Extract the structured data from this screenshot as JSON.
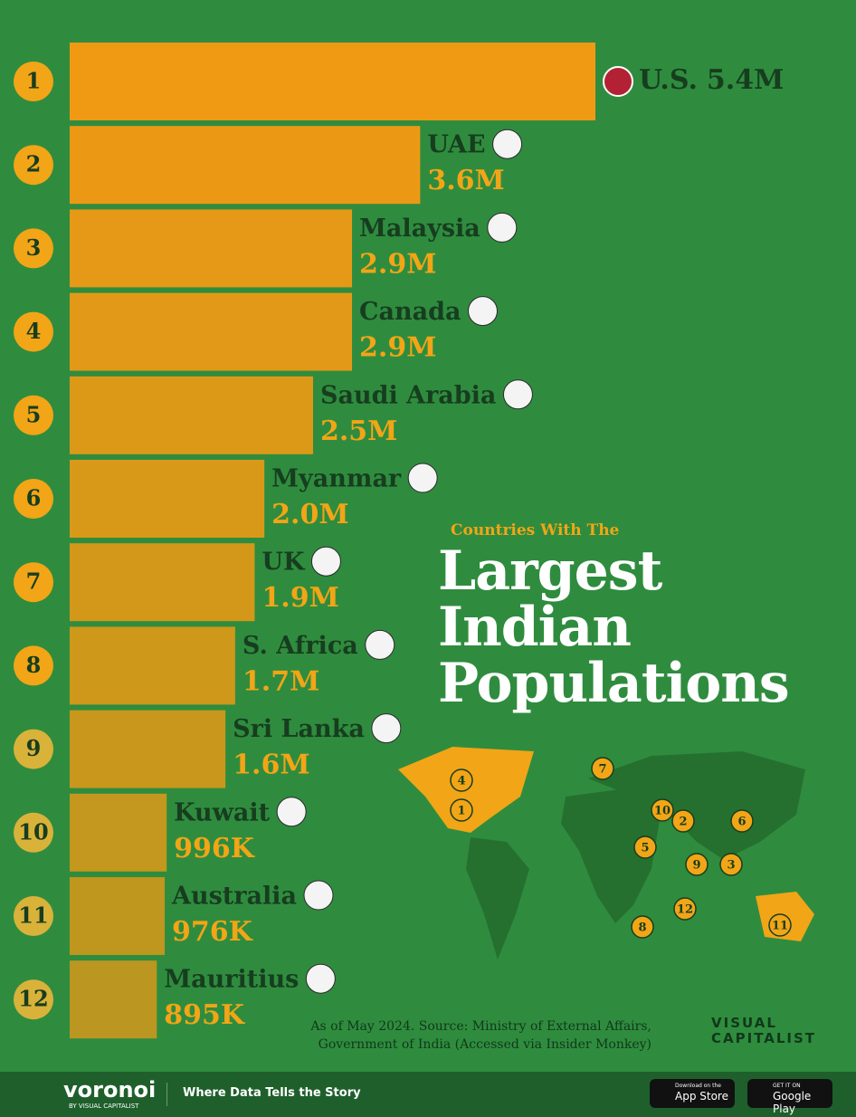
{
  "chart_data": {
    "type": "bar",
    "subtitle": "Countries With The",
    "title": "Largest Indian Populations",
    "ranks": [
      "1",
      "2",
      "3",
      "4",
      "5",
      "6",
      "7",
      "8",
      "9",
      "10",
      "11",
      "12"
    ],
    "categories": [
      "U.S.",
      "UAE",
      "Malaysia",
      "Canada",
      "Saudi Arabia",
      "Myanmar",
      "UK",
      "S. Africa",
      "Sri Lanka",
      "Kuwait",
      "Australia",
      "Mauritius"
    ],
    "values": [
      5.4,
      3.6,
      2.9,
      2.9,
      2.5,
      2.0,
      1.9,
      1.7,
      1.6,
      0.996,
      0.976,
      0.895
    ],
    "value_labels": [
      "5.4M",
      "3.6M",
      "2.9M",
      "2.9M",
      "2.5M",
      "2.0M",
      "1.9M",
      "1.7M",
      "1.6M",
      "996K",
      "976K",
      "895K"
    ],
    "color": "#f09a14",
    "source": "As of May 2024. Source: Ministry of External Affairs, Government of India (Accessed via Insider Monkey)",
    "publisher": "VISUAL CAPITALIST"
  },
  "footer": {
    "brand": "voronoi",
    "brand_sub": "BY VISUAL CAPITALIST",
    "tagline": "Where Data Tells the Story",
    "app_store_small": "Download on the",
    "app_store": "App Store",
    "google_play_small": "GET IT ON",
    "google_play": "Google Play"
  }
}
